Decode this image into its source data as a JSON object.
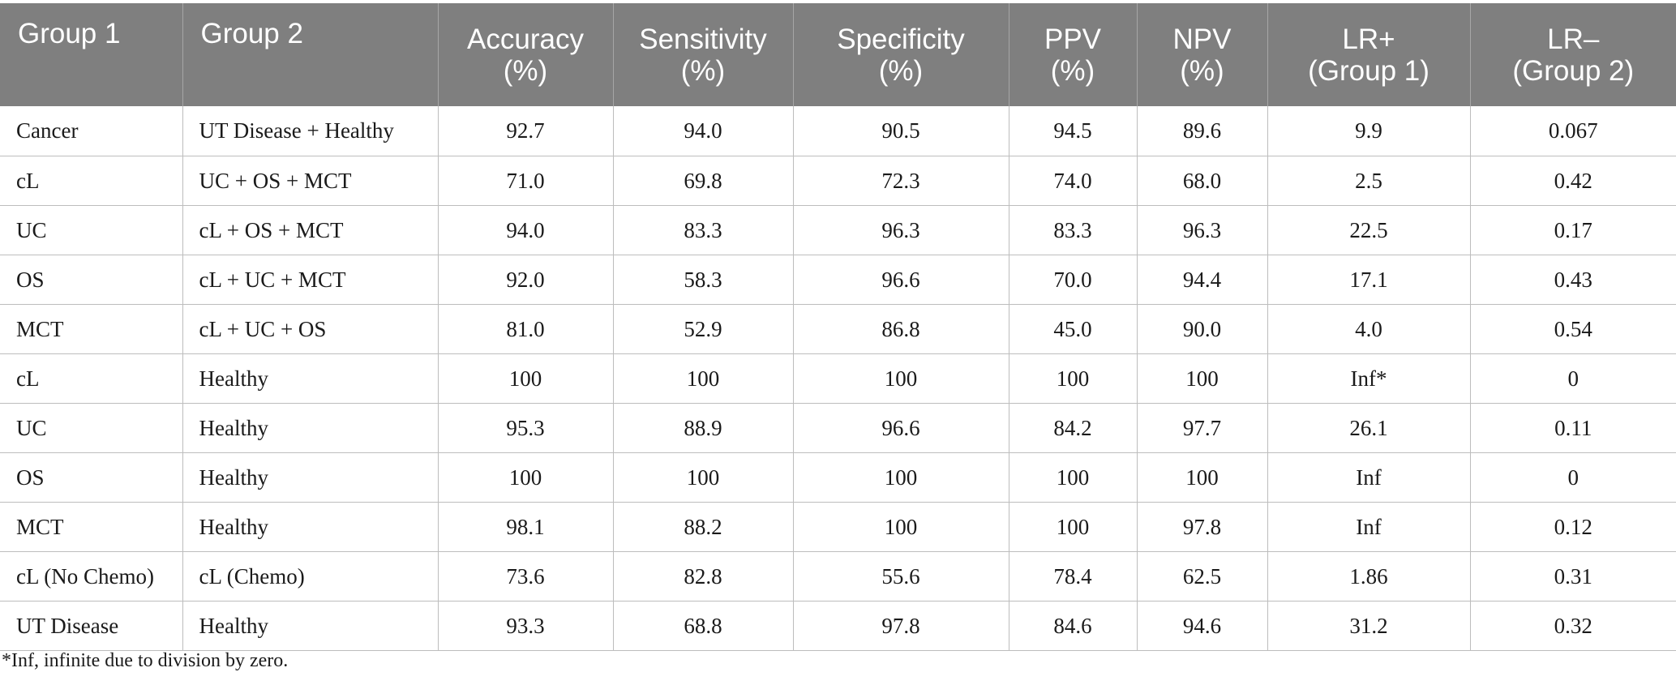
{
  "table": {
    "columns": [
      "Group 1",
      "Group 2",
      "Accuracy\n(%)",
      "Sensitivity\n(%)",
      "Specificity\n(%)",
      "PPV\n(%)",
      "NPV\n(%)",
      "LR+\n(Group 1)",
      "LR–\n(Group 2)"
    ],
    "rows": [
      [
        "Cancer",
        "UT Disease + Healthy",
        "92.7",
        "94.0",
        "90.5",
        "94.5",
        "89.6",
        "9.9",
        "0.067"
      ],
      [
        "cL",
        "UC + OS + MCT",
        "71.0",
        "69.8",
        "72.3",
        "74.0",
        "68.0",
        "2.5",
        "0.42"
      ],
      [
        "UC",
        "cL + OS + MCT",
        "94.0",
        "83.3",
        "96.3",
        "83.3",
        "96.3",
        "22.5",
        "0.17"
      ],
      [
        "OS",
        "cL + UC + MCT",
        "92.0",
        "58.3",
        "96.6",
        "70.0",
        "94.4",
        "17.1",
        "0.43"
      ],
      [
        "MCT",
        "cL + UC + OS",
        "81.0",
        "52.9",
        "86.8",
        "45.0",
        "90.0",
        "4.0",
        "0.54"
      ],
      [
        "cL",
        "Healthy",
        "100",
        "100",
        "100",
        "100",
        "100",
        "Inf*",
        "0"
      ],
      [
        "UC",
        "Healthy",
        "95.3",
        "88.9",
        "96.6",
        "84.2",
        "97.7",
        "26.1",
        "0.11"
      ],
      [
        "OS",
        "Healthy",
        "100",
        "100",
        "100",
        "100",
        "100",
        "Inf",
        "0"
      ],
      [
        "MCT",
        "Healthy",
        "98.1",
        "88.2",
        "100",
        "100",
        "97.8",
        "Inf",
        "0.12"
      ],
      [
        "cL (No Chemo)",
        "cL (Chemo)",
        "73.6",
        "82.8",
        "55.6",
        "78.4",
        "62.5",
        "1.86",
        "0.31"
      ],
      [
        "UT Disease",
        "Healthy",
        "93.3",
        "68.8",
        "97.8",
        "84.6",
        "94.6",
        "31.2",
        "0.32"
      ]
    ]
  },
  "footnote": "*Inf, infinite due to division by zero."
}
